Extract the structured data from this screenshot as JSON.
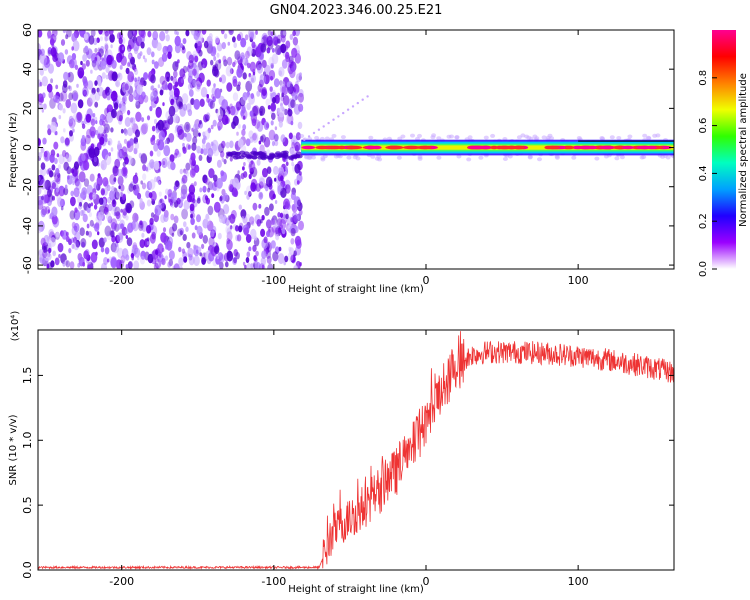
{
  "chart_data": [
    {
      "type": "heatmap",
      "title": "GN04.2023.346.00.25.E21",
      "xlabel": "Height of straight line (km)",
      "ylabel": "Frequency (Hz)",
      "xlim": [
        -255,
        163
      ],
      "ylim": [
        -62,
        60
      ],
      "xticks": [
        -200,
        -100,
        0,
        100
      ],
      "xtick_labels": [
        "-200",
        "-100",
        "0",
        "100"
      ],
      "yticks": [
        -60,
        -40,
        -20,
        0,
        20,
        40,
        60
      ],
      "ytick_labels": [
        "-60",
        "-40",
        "-20",
        "0",
        "20",
        "40",
        "60"
      ],
      "noise_region_x": [
        -255,
        -82
      ],
      "signal_band": {
        "x_start": -82,
        "x_end": 163,
        "center_hz": 0,
        "half_width_hz": 2.5
      },
      "colorbar": {
        "label": "Normalized spectral amplitude",
        "ticks": [
          0.0,
          0.2,
          0.4,
          0.6,
          0.8
        ],
        "tick_labels": [
          "0.0",
          "0.2",
          "0.4",
          "0.6",
          "0.8"
        ],
        "range": [
          0,
          1
        ],
        "colors": [
          "#ffffff",
          "#9a00ff",
          "#2000ff",
          "#00a0ff",
          "#00ffc0",
          "#30ff00",
          "#f0ff00",
          "#ff8000",
          "#ff0000",
          "#ff0090"
        ]
      }
    },
    {
      "type": "line",
      "title": "",
      "xlabel": "Height of straight line (km)",
      "ylabel": "SNR (10 * v/v)",
      "y_multiplier": "(x10⁴)",
      "xlim": [
        -255,
        163
      ],
      "ylim": [
        0,
        1.85
      ],
      "xticks": [
        -200,
        -100,
        0,
        100
      ],
      "xtick_labels": [
        "-200",
        "-100",
        "0",
        "100"
      ],
      "yticks": [
        0.0,
        0.5,
        1.0,
        1.5
      ],
      "ytick_labels": [
        "0.0",
        "0.5",
        "1.0",
        "1.5"
      ],
      "color": "#ee3333",
      "series": [
        {
          "name": "SNR",
          "x": [
            -255,
            -200,
            -150,
            -100,
            -70,
            -66,
            -60,
            -50,
            -40,
            -30,
            -20,
            -10,
            0,
            10,
            20,
            25,
            30,
            40,
            60,
            80,
            100,
            120,
            140,
            163
          ],
          "y": [
            0.02,
            0.02,
            0.02,
            0.02,
            0.02,
            0.15,
            0.3,
            0.4,
            0.5,
            0.62,
            0.75,
            0.92,
            1.15,
            1.38,
            1.55,
            1.62,
            1.66,
            1.68,
            1.68,
            1.67,
            1.65,
            1.62,
            1.58,
            1.52
          ]
        }
      ]
    }
  ]
}
